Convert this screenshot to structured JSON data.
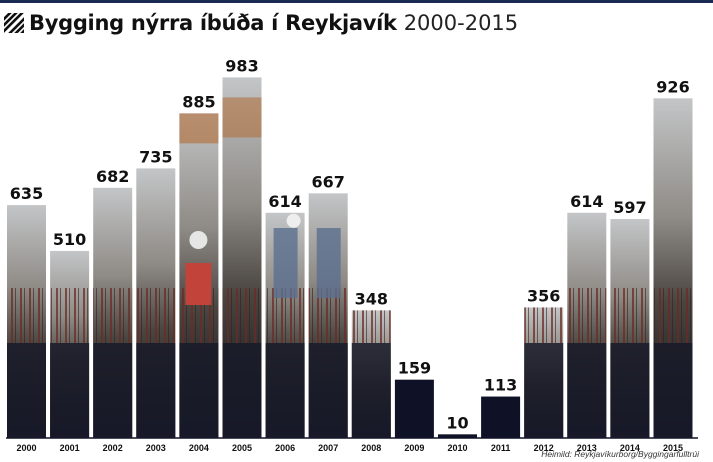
{
  "title": {
    "main": "Bygging nýrra íbúða í Reykjavík",
    "years": "2000-2015"
  },
  "source": "Heimild: Reykjavíkurborg/Byggingarfulltrúi",
  "colors": {
    "bar_dark": "#0f1226",
    "bar_photo_light": "#b9bcc0",
    "bar_photo_mid": "#6f6a64",
    "rust": "#7a2e24",
    "orange": "#b06a33",
    "label": "#111111",
    "topline": "#1a2a55"
  },
  "chart_data": {
    "type": "bar",
    "title": "Bygging nýrra íbúða í Reykjavík 2000-2015",
    "xlabel": "",
    "ylabel": "",
    "ylim": [
      0,
      1000
    ],
    "grid": false,
    "legend": "none",
    "categories": [
      "2000",
      "2001",
      "2002",
      "2003",
      "2004",
      "2005",
      "2006",
      "2007",
      "2008",
      "2009",
      "2010",
      "2011",
      "2012",
      "2013",
      "2014",
      "2015"
    ],
    "values": [
      635,
      510,
      682,
      735,
      885,
      983,
      614,
      667,
      348,
      159,
      10,
      113,
      356,
      614,
      597,
      926
    ],
    "bar_fill": [
      "photo",
      "photo",
      "photo",
      "photo",
      "photo",
      "photo",
      "photo",
      "photo",
      "photo",
      "dark",
      "dark",
      "dark",
      "photo",
      "photo",
      "photo",
      "photo"
    ]
  }
}
